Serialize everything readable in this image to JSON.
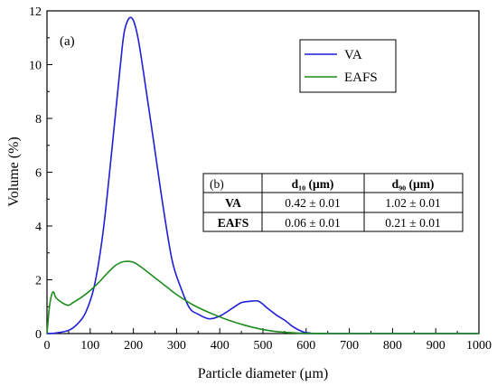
{
  "chart_data": {
    "type": "line",
    "panel_label": "(a)",
    "xlabel": "Particle diameter (μm)",
    "ylabel": "Volume (%)",
    "xlim": [
      0,
      1000
    ],
    "ylim": [
      0,
      12
    ],
    "xticks": [
      0,
      100,
      200,
      300,
      400,
      500,
      600,
      700,
      800,
      900,
      1000
    ],
    "yticks": [
      0,
      2,
      4,
      6,
      8,
      10,
      12
    ],
    "grid": false,
    "legend_position": "top-right",
    "series": [
      {
        "name": "VA",
        "color": "#1f1fd6",
        "x": [
          0,
          20,
          50,
          70,
          90,
          110,
          130,
          150,
          170,
          180,
          195,
          210,
          230,
          250,
          270,
          290,
          310,
          330,
          350,
          375,
          400,
          430,
          450,
          470,
          490,
          510,
          530,
          550,
          570,
          590,
          600,
          610,
          620,
          1000
        ],
        "values": [
          0,
          0.02,
          0.12,
          0.35,
          0.8,
          1.8,
          3.8,
          6.8,
          10.0,
          11.3,
          11.75,
          11.05,
          9.0,
          6.8,
          4.6,
          2.7,
          1.7,
          0.95,
          0.72,
          0.55,
          0.65,
          0.95,
          1.15,
          1.2,
          1.2,
          0.95,
          0.7,
          0.5,
          0.25,
          0.08,
          0.04,
          0.02,
          0,
          0
        ]
      },
      {
        "name": "EAFS",
        "color": "#1c8c1c",
        "x": [
          0,
          5,
          10,
          15,
          20,
          30,
          40,
          50,
          60,
          80,
          100,
          120,
          140,
          160,
          180,
          200,
          220,
          240,
          260,
          280,
          300,
          340,
          380,
          420,
          460,
          500,
          540,
          580,
          610,
          640,
          650,
          1000
        ],
        "values": [
          0,
          0.9,
          1.4,
          1.55,
          1.35,
          1.2,
          1.1,
          1.05,
          1.15,
          1.35,
          1.6,
          1.9,
          2.25,
          2.55,
          2.68,
          2.65,
          2.45,
          2.2,
          1.95,
          1.7,
          1.45,
          1.05,
          0.75,
          0.5,
          0.3,
          0.15,
          0.06,
          0.02,
          0.01,
          0.005,
          0,
          0
        ]
      }
    ],
    "inset_table": {
      "corner_label": "(b)",
      "headers": [
        "d₁₀ (μm)",
        "d₉₀ (μm)"
      ],
      "rows": [
        {
          "label": "VA",
          "values": [
            "0.42 ± 0.01",
            "1.02 ± 0.01"
          ]
        },
        {
          "label": "EAFS",
          "values": [
            "0.06 ± 0.01",
            "0.21 ± 0.01"
          ]
        }
      ]
    }
  }
}
